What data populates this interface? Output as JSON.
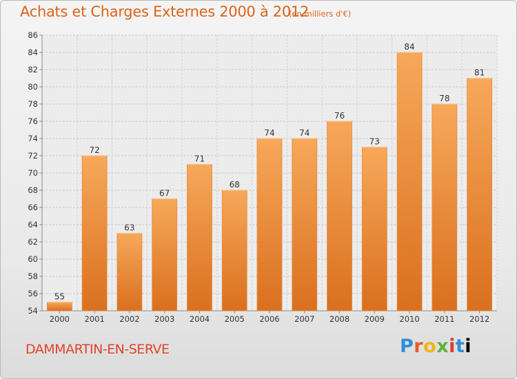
{
  "header": {
    "title": "Achats et Charges Externes 2000 à 2012",
    "subtitle": "(en milliers d'€)"
  },
  "footer": {
    "commune": "DAMMARTIN-EN-SERVE",
    "brand": [
      "P",
      "r",
      "o",
      "x",
      "i",
      "t",
      "i"
    ]
  },
  "colors": {
    "bar_top": "#f7a85a",
    "bar_bottom": "#d9701f",
    "title": "#d9641b",
    "commune": "#e0442a"
  },
  "chart_data": {
    "type": "bar",
    "title": "Achats et Charges Externes 2000 à 2012",
    "subtitle": "(en milliers d'€)",
    "categories": [
      "2000",
      "2001",
      "2002",
      "2003",
      "2004",
      "2005",
      "2006",
      "2007",
      "2008",
      "2009",
      "2010",
      "2011",
      "2012"
    ],
    "values": [
      55,
      72,
      63,
      67,
      71,
      68,
      74,
      74,
      76,
      73,
      84,
      78,
      81
    ],
    "ylim": [
      54,
      86
    ],
    "yticks": [
      54,
      56,
      58,
      60,
      62,
      64,
      66,
      68,
      70,
      72,
      74,
      76,
      78,
      80,
      82,
      84,
      86
    ],
    "grid": true,
    "data_labels": true
  }
}
